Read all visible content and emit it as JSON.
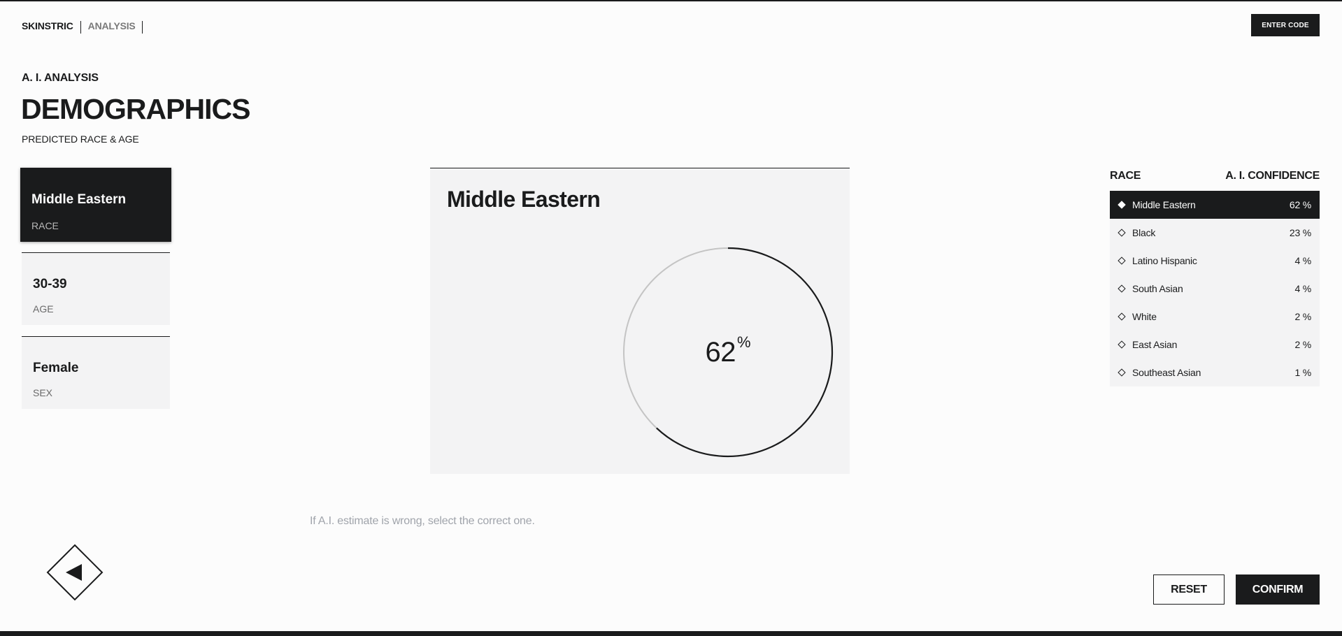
{
  "header": {
    "brand": "SKINSTRIC",
    "section": "ANALYSIS",
    "enter_code_label": "ENTER CODE"
  },
  "titles": {
    "kicker": "A. I. ANALYSIS",
    "title": "DEMOGRAPHICS",
    "subtitle": "PREDICTED RACE & AGE"
  },
  "categories": [
    {
      "value": "Middle Eastern",
      "label": "RACE",
      "active": true
    },
    {
      "value": "30-39",
      "label": "AGE",
      "active": false
    },
    {
      "value": "Female",
      "label": "SEX",
      "active": false
    }
  ],
  "panel": {
    "title": "Middle Eastern",
    "percent": 62,
    "percent_text": "62",
    "percent_sign": "%"
  },
  "hint": "If A.I. estimate is wrong, select the correct one.",
  "list": {
    "header_left": "RACE",
    "header_right": "A. I. CONFIDENCE",
    "rows": [
      {
        "name": "Middle Eastern",
        "pct": "62 %"
      },
      {
        "name": "Black",
        "pct": "23 %"
      },
      {
        "name": "Latino Hispanic",
        "pct": "4 %"
      },
      {
        "name": "South Asian",
        "pct": "4 %"
      },
      {
        "name": "White",
        "pct": "2 %"
      },
      {
        "name": "East Asian",
        "pct": "2 %"
      },
      {
        "name": "Southeast Asian",
        "pct": "1 %"
      }
    ]
  },
  "actions": {
    "reset_label": "RESET",
    "confirm_label": "CONFIRM"
  },
  "colors": {
    "dark": "#1a1b1c",
    "panel_bg": "#f3f3f4",
    "ring_track": "#c4c4c4",
    "hint": "#a0a4ab"
  },
  "icons": {
    "back": "back-arrow-icon",
    "diamond": "diamond-icon"
  }
}
